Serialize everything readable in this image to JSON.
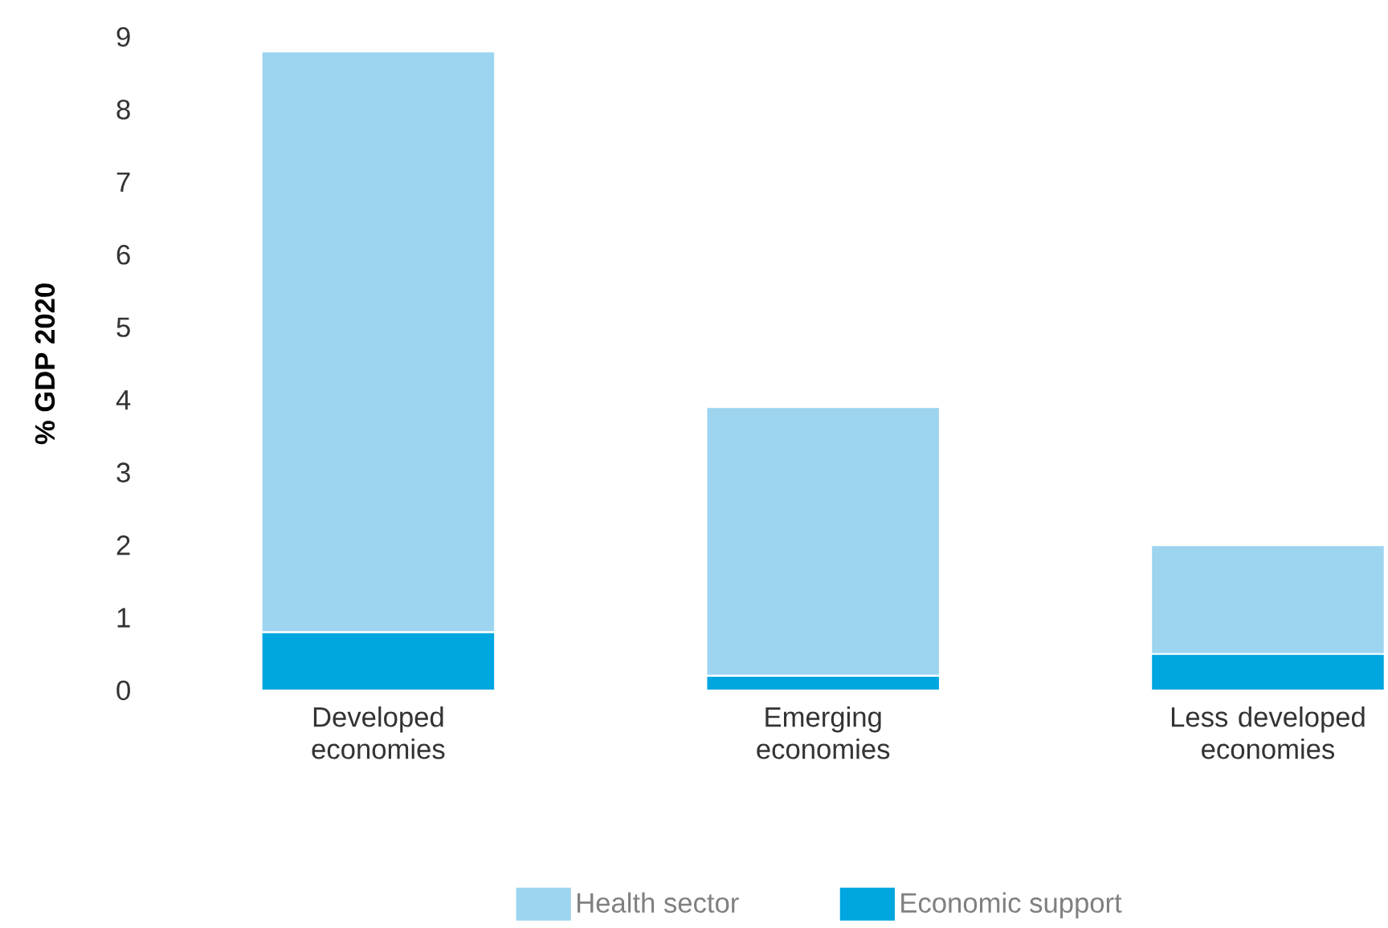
{
  "chart_data": {
    "type": "bar",
    "stacked": true,
    "ylabel": "% GDP 2020",
    "categories": [
      "Developed economies",
      "Emerging economies",
      "Less developed economies"
    ],
    "series": [
      {
        "name": "Economic support",
        "color": "#00a6e0",
        "values": [
          0.8,
          0.2,
          0.5
        ]
      },
      {
        "name": "Health sector",
        "color": "#9dd5f0",
        "values": [
          8.0,
          3.7,
          1.5
        ]
      }
    ],
    "ylim": [
      0,
      9
    ],
    "yticks": [
      0,
      1,
      2,
      3,
      4,
      5,
      6,
      7,
      8,
      9
    ],
    "grid": false,
    "legend": "bottom"
  }
}
